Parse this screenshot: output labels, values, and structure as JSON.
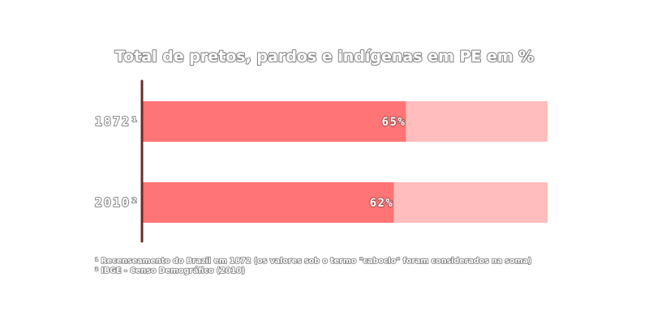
{
  "chart_data": {
    "type": "bar",
    "orientation": "horizontal",
    "stacked_to_total": 100,
    "title": "Total de pretos, pardos e indígenas em PE em %",
    "categories": [
      "1872¹",
      "2010²"
    ],
    "values": [
      65,
      62
    ],
    "value_labels": [
      "65%",
      "62%"
    ],
    "xlim": [
      0,
      100
    ],
    "xlabel": "",
    "ylabel": "",
    "grid": false,
    "legend": "none",
    "notes": [
      "¹ Recenseamento do Brazil em 1872 (os valores sob o termo \"caboclo\" foram considerados na soma)",
      "² IBGE - Censo Demográfico (2010)"
    ],
    "colors": {
      "value": "#ff7474",
      "remainder": "#ffbdbd",
      "axis": "#6e2a2a"
    }
  }
}
